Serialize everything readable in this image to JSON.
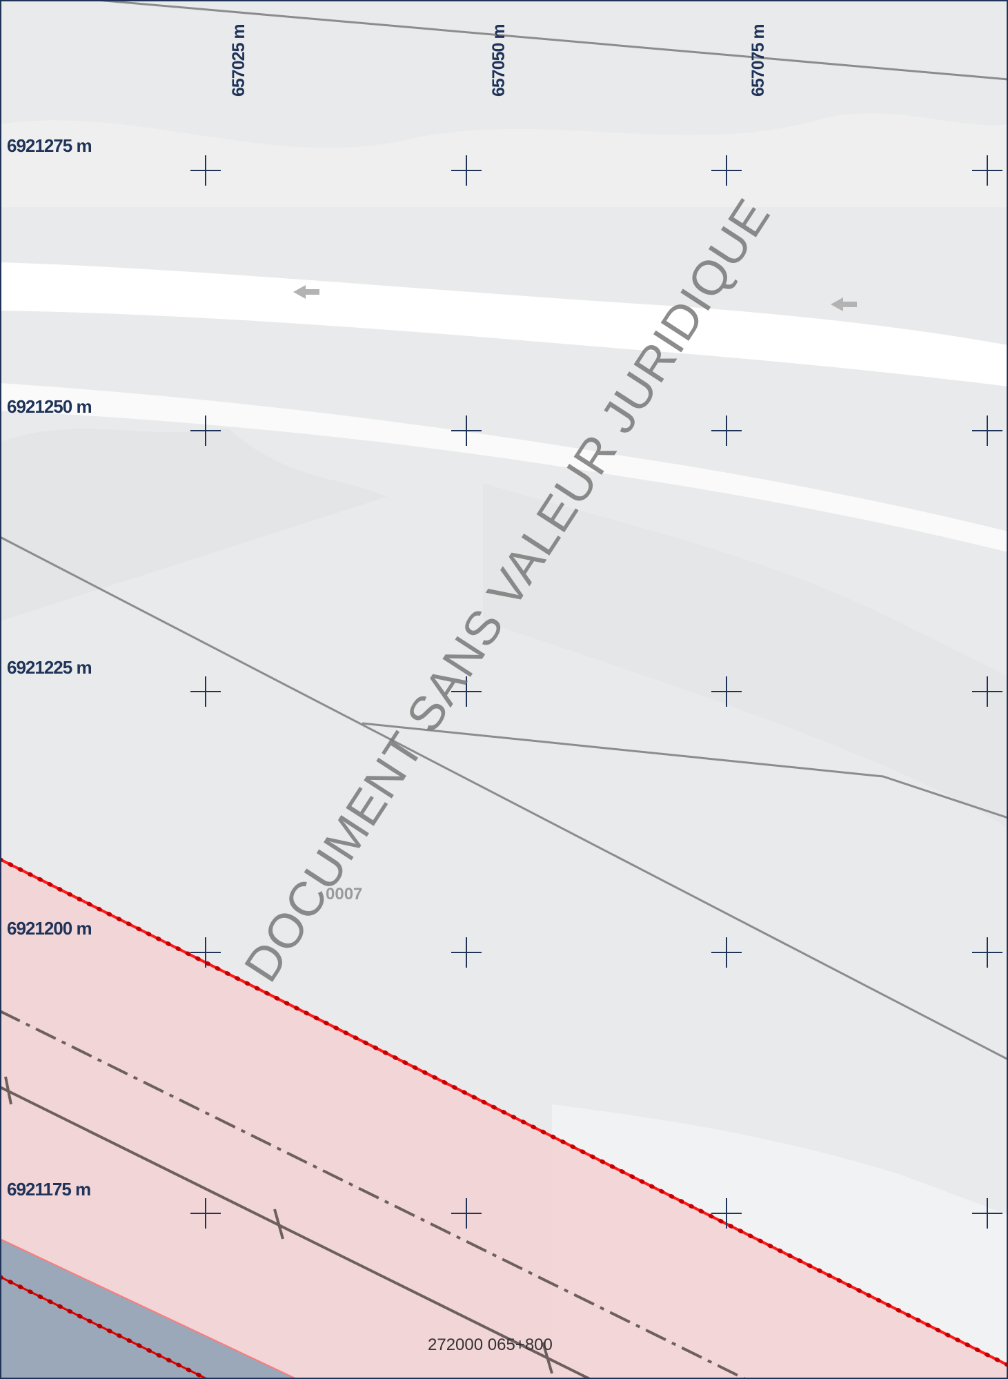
{
  "map": {
    "easting_labels": [
      "657025 m",
      "657050 m",
      "657075 m"
    ],
    "northing_labels": [
      "6921275 m",
      "6921250 m",
      "6921225 m",
      "6921200 m",
      "6921175 m"
    ],
    "watermark": "DOCUMENT SANS VALEUR JURIDIQUE",
    "parcel_label": "0007",
    "road_label": "272000 065+800",
    "colors": {
      "grid": "#1f3358",
      "background": "#e9eaeb",
      "zone_fill": "#f2d3d5",
      "zone_border": "#ff1a1a",
      "parcel_lines": "#8c8c8c",
      "road_line": "#6e5f5f",
      "water": "#9aa8ba"
    }
  }
}
